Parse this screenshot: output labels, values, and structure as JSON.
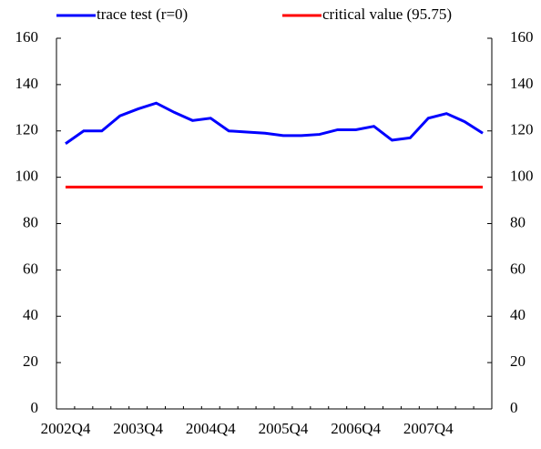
{
  "chart_data": {
    "type": "line",
    "categories": [
      "2002Q4",
      null,
      null,
      null,
      "2003Q4",
      null,
      null,
      null,
      "2004Q4",
      null,
      null,
      null,
      "2005Q4",
      null,
      null,
      null,
      "2006Q4",
      null,
      null,
      null,
      "2007Q4",
      null,
      null,
      null
    ],
    "series": [
      {
        "name": "trace test (r=0)",
        "color": "#0000ff",
        "values": [
          114.5,
          120,
          120,
          126.5,
          129.5,
          132,
          128,
          124.5,
          125.5,
          120,
          119.5,
          119,
          118,
          118,
          118.5,
          120.5,
          120.5,
          122,
          116,
          117,
          125.5,
          127.5,
          124,
          119
        ]
      },
      {
        "name": "critical value (95.75)",
        "color": "#ff0000",
        "values": [
          95.75,
          95.75,
          95.75,
          95.75,
          95.75,
          95.75,
          95.75,
          95.75,
          95.75,
          95.75,
          95.75,
          95.75,
          95.75,
          95.75,
          95.75,
          95.75,
          95.75,
          95.75,
          95.75,
          95.75,
          95.75,
          95.75,
          95.75,
          95.75
        ]
      }
    ],
    "ylim": [
      0,
      160
    ],
    "yticks": [
      0,
      20,
      40,
      60,
      80,
      100,
      120,
      140,
      160
    ],
    "y2lim": [
      0,
      160
    ],
    "y2ticks": [
      0,
      20,
      40,
      60,
      80,
      100,
      120,
      140,
      160
    ],
    "grid": false,
    "legend": "top"
  }
}
